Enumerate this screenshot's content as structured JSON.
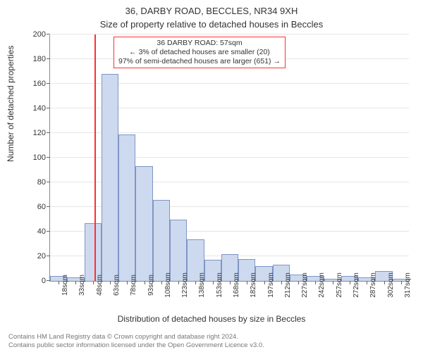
{
  "title_line1": "36, DARBY ROAD, BECCLES, NR34 9XH",
  "title_line2": "Size of property relative to detached houses in Beccles",
  "ylabel": "Number of detached properties",
  "xlabel": "Distribution of detached houses by size in Beccles",
  "chart": {
    "type": "histogram",
    "ylim": [
      0,
      200
    ],
    "ytick_step": 20,
    "yticks": [
      0,
      20,
      40,
      60,
      80,
      100,
      120,
      140,
      160,
      180,
      200
    ],
    "xticks": [
      "18sqm",
      "33sqm",
      "48sqm",
      "63sqm",
      "78sqm",
      "93sqm",
      "108sqm",
      "123sqm",
      "138sqm",
      "153sqm",
      "168sqm",
      "182sqm",
      "197sqm",
      "212sqm",
      "227sqm",
      "242sqm",
      "257sqm",
      "272sqm",
      "287sqm",
      "302sqm",
      "317sqm"
    ],
    "bar_values": [
      4,
      3,
      47,
      168,
      119,
      93,
      66,
      50,
      34,
      17,
      22,
      18,
      12,
      13,
      5,
      4,
      2,
      4,
      3,
      8,
      2
    ],
    "bar_fill": "#cdd9ee",
    "bar_stroke": "#7f95c4",
    "bar_width_ratio": 1.0,
    "background": "#ffffff",
    "grid_color": "#e6e6e6",
    "axis_color": "#888888",
    "marker_x_index": 2.6,
    "marker_color": "#ff3030"
  },
  "annotation": {
    "lines": [
      "36 DARBY ROAD: 57sqm",
      "← 3% of detached houses are smaller (20)",
      "97% of semi-detached houses are larger (651) →"
    ],
    "border_color": "#ff3030"
  },
  "credits": {
    "line1": "Contains HM Land Registry data © Crown copyright and database right 2024.",
    "line2": "Contains public sector information licensed under the Open Government Licence v3.0."
  }
}
